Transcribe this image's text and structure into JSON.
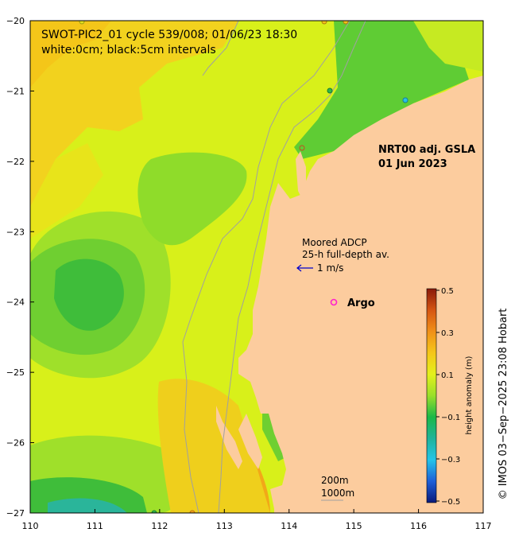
{
  "map": {
    "title_line1": "SWOT-PIC2_01 cycle 539/008; 01/06/23 18:30",
    "title_line2": "white:0cm; black:5cm intervals",
    "product_line1": "NRT00 adj. GSLA",
    "product_line2": "01 Jun 2023",
    "adcp_line1": "Moored ADCP",
    "adcp_line2": "25-h full-depth av.",
    "adcp_scale_label": "1 m/s",
    "argo_label": "Argo",
    "depth_200": "200m",
    "depth_1000": "1000m",
    "x_ticks": [
      "110",
      "111",
      "112",
      "113",
      "114",
      "115",
      "116",
      "117"
    ],
    "y_ticks": [
      "−20",
      "−21",
      "−22",
      "−23",
      "−24",
      "−25",
      "−26",
      "−27"
    ],
    "credit": "© IMOS 03−Sep−2025 23:08 Hobart",
    "colors": {
      "land": "#fccc9e",
      "ocean_base": "#d8f01a",
      "argo_marker": "#ff22cc",
      "adcp_arrow": "#0000cc",
      "bathymetry": "#a0a0a0"
    }
  },
  "colorbar": {
    "title": "height anomaly (m)",
    "tick_labels": [
      "0.5",
      "0.3",
      "0.1",
      "−0.1",
      "−0.3",
      "−0.5"
    ]
  }
}
